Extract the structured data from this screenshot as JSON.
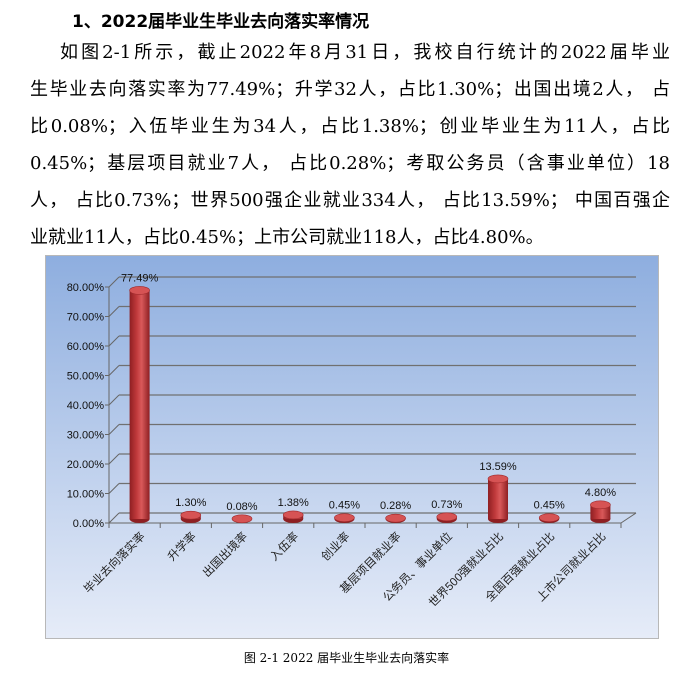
{
  "heading": "1、2022届毕业生毕业去向落实率情况",
  "paragraph_lines": [
    "如图2-1所示，截止2022年8月31日，我校自行统计的2022届毕业",
    "生毕业去向落实率为77.49%；升学32人，占比1.30%；出国出境2人， 占",
    "比0.08%；入伍毕业生为34人，占比1.38%；创业毕业生为11人，占比",
    "0.45%；基层项目就业7人， 占比0.28%；考取公务员（含事业单位）18",
    "人， 占比0.73%；世界500强企业就业334人， 占比13.59%； 中国百强企",
    "业就业11人，占比0.45%；上市公司就业118人，占比4.80%。"
  ],
  "caption": "图 2-1 2022 届毕业生毕业去向落实率",
  "chart_data": {
    "type": "bar",
    "style": "3d-cylinder",
    "categories": [
      "毕业去向落实率",
      "升学率",
      "出国出境率",
      "入伍率",
      "创业率",
      "基层项目就业率",
      "公务员、事业单位",
      "世界500强就业占比",
      "全国百强就业占比",
      "上市公司就业占比"
    ],
    "values": [
      77.49,
      1.3,
      0.08,
      1.38,
      0.45,
      0.28,
      0.73,
      13.59,
      0.45,
      4.8
    ],
    "data_labels": [
      "77.49%",
      "1.30%",
      "0.08%",
      "1.38%",
      "0.45%",
      "0.28%",
      "0.73%",
      "13.59%",
      "0.45%",
      "4.80%"
    ],
    "yticks": [
      "0.00%",
      "10.00%",
      "20.00%",
      "30.00%",
      "40.00%",
      "50.00%",
      "60.00%",
      "70.00%",
      "80.00%"
    ],
    "ylim": [
      0,
      80
    ],
    "grid": true,
    "bar_color": "#c0393b",
    "background": "#9db6e3"
  }
}
